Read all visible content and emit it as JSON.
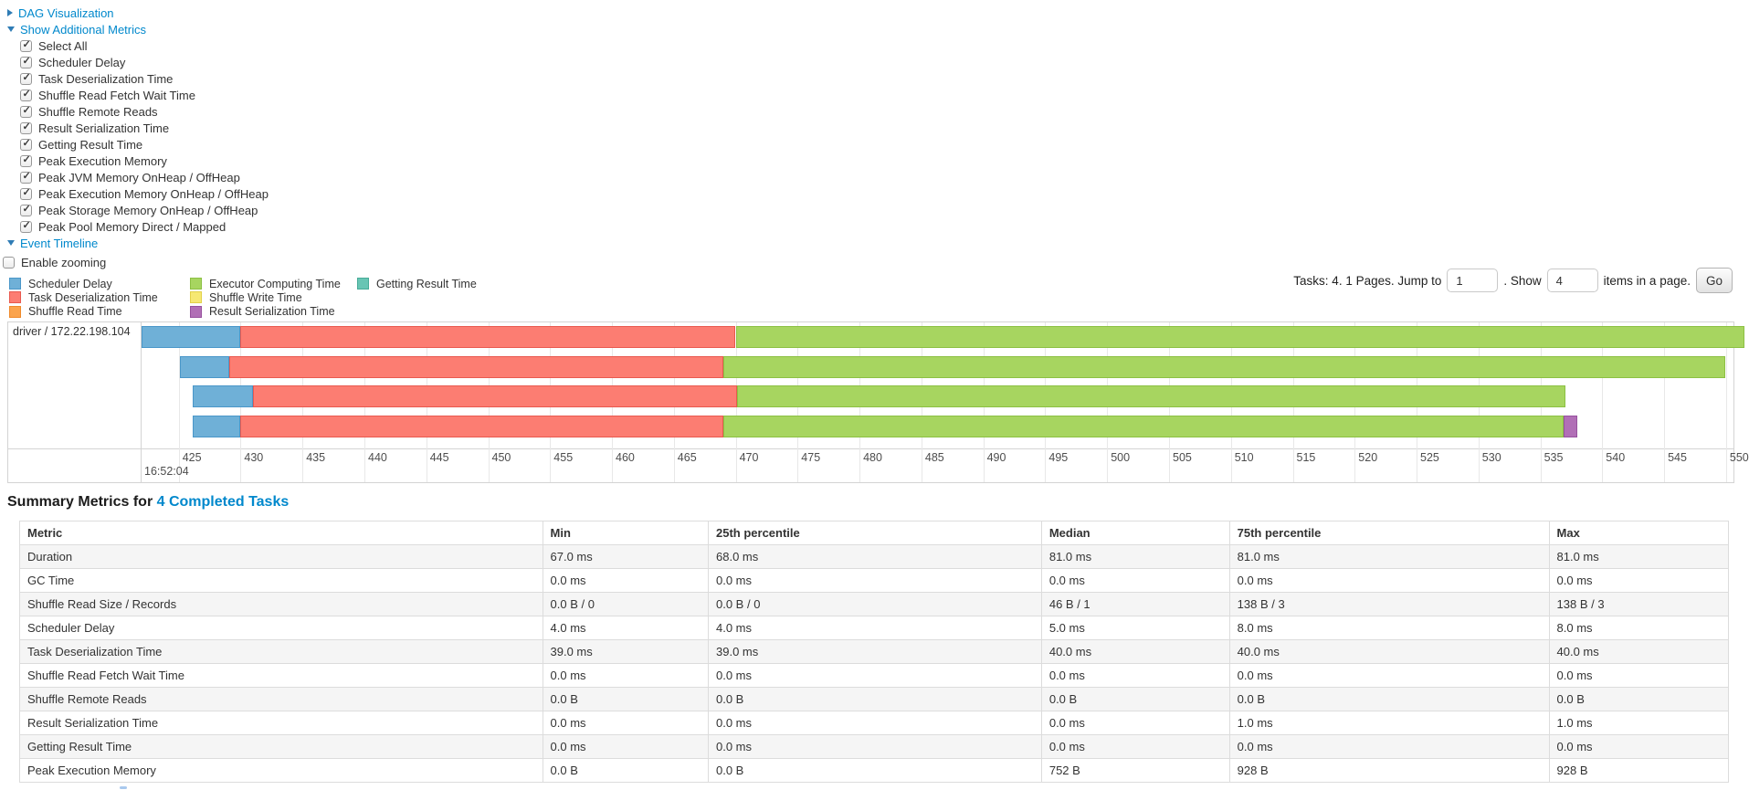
{
  "colors": {
    "link": "#0088cc",
    "arrow": "#2f7cb5",
    "timeline_border": "#d4d4d4",
    "gridline": "#e8e8e8",
    "row_stripe": "#f5f5f5",
    "table_border": "#dcdcdc"
  },
  "controls": {
    "dag_label": "DAG Visualization",
    "metrics_label": "Show Additional Metrics",
    "metrics_items": [
      {
        "label": "Select All",
        "checked": true
      },
      {
        "label": "Scheduler Delay",
        "checked": true
      },
      {
        "label": "Task Deserialization Time",
        "checked": true
      },
      {
        "label": "Shuffle Read Fetch Wait Time",
        "checked": true
      },
      {
        "label": "Shuffle Remote Reads",
        "checked": true
      },
      {
        "label": "Result Serialization Time",
        "checked": true
      },
      {
        "label": "Getting Result Time",
        "checked": true
      },
      {
        "label": "Peak Execution Memory",
        "checked": true
      },
      {
        "label": "Peak JVM Memory OnHeap / OffHeap",
        "checked": true
      },
      {
        "label": "Peak Execution Memory OnHeap / OffHeap",
        "checked": true
      },
      {
        "label": "Peak Storage Memory OnHeap / OffHeap",
        "checked": true
      },
      {
        "label": "Peak Pool Memory Direct / Mapped",
        "checked": true
      }
    ],
    "event_timeline_label": "Event Timeline",
    "enable_zooming": {
      "label": "Enable zooming",
      "checked": false
    }
  },
  "pagination": {
    "summary_text": "Tasks: 4. 1 Pages. Jump to",
    "jump_value": "1",
    "between_text": ". Show",
    "show_value": "4",
    "suffix_text": "items in a page.",
    "go_label": "Go"
  },
  "chart_data": {
    "type": "timeline",
    "group_label": "driver / 172.22.198.104",
    "axis": {
      "min": 422.0,
      "max": 550.6,
      "tick_start": 425,
      "tick_step": 5,
      "tick_end": 550,
      "major_label": "16:52:04",
      "unit": "ms within second 16:52:04"
    },
    "segment_types": {
      "scheduler_delay": {
        "label": "Scheduler Delay",
        "fill": "#6fb0d7",
        "border": "#4a97c9"
      },
      "task_deserialization": {
        "label": "Task Deserialization Time",
        "fill": "#fc7d72",
        "border": "#e9594f"
      },
      "shuffle_read": {
        "label": "Shuffle Read Time",
        "fill": "#fba44d",
        "border": "#ef8a2b"
      },
      "executor_computing": {
        "label": "Executor Computing Time",
        "fill": "#a7d560",
        "border": "#8cc043"
      },
      "shuffle_write": {
        "label": "Shuffle Write Time",
        "fill": "#f6e873",
        "border": "#e2d14a"
      },
      "result_serialization": {
        "label": "Result Serialization Time",
        "fill": "#b16fb6",
        "border": "#97519e"
      },
      "getting_result": {
        "label": "Getting Result Time",
        "fill": "#68c5b4",
        "border": "#47ab98"
      }
    },
    "legend_columns": [
      [
        "scheduler_delay",
        "task_deserialization",
        "shuffle_read"
      ],
      [
        "executor_computing",
        "shuffle_write",
        "result_serialization"
      ],
      [
        "getting_result"
      ]
    ],
    "tasks": [
      {
        "segments": [
          {
            "type": "scheduler_delay",
            "start": 422.0,
            "end": 430.0
          },
          {
            "type": "task_deserialization",
            "start": 430.0,
            "end": 470.0
          },
          {
            "type": "executor_computing",
            "start": 470.0,
            "end": 551.5
          }
        ]
      },
      {
        "segments": [
          {
            "type": "scheduler_delay",
            "start": 425.1,
            "end": 429.1
          },
          {
            "type": "task_deserialization",
            "start": 429.1,
            "end": 469.0
          },
          {
            "type": "executor_computing",
            "start": 469.0,
            "end": 549.9
          }
        ]
      },
      {
        "segments": [
          {
            "type": "scheduler_delay",
            "start": 426.1,
            "end": 431.0
          },
          {
            "type": "task_deserialization",
            "start": 431.0,
            "end": 470.1
          },
          {
            "type": "executor_computing",
            "start": 470.1,
            "end": 537.0
          }
        ]
      },
      {
        "segments": [
          {
            "type": "scheduler_delay",
            "start": 426.1,
            "end": 430.0
          },
          {
            "type": "task_deserialization",
            "start": 430.0,
            "end": 469.0
          },
          {
            "type": "executor_computing",
            "start": 469.0,
            "end": 536.9
          },
          {
            "type": "result_serialization",
            "start": 536.9,
            "end": 538.0
          }
        ]
      }
    ]
  },
  "summary": {
    "title_prefix": "Summary Metrics for",
    "title_link": "4 Completed Tasks",
    "table": {
      "headers": [
        "Metric",
        "Min",
        "25th percentile",
        "Median",
        "75th percentile",
        "Max"
      ],
      "rows": [
        [
          "Duration",
          "67.0 ms",
          "68.0 ms",
          "81.0 ms",
          "81.0 ms",
          "81.0 ms"
        ],
        [
          "GC Time",
          "0.0 ms",
          "0.0 ms",
          "0.0 ms",
          "0.0 ms",
          "0.0 ms"
        ],
        [
          "Shuffle Read Size / Records",
          "0.0 B / 0",
          "0.0 B / 0",
          "46 B / 1",
          "138 B / 3",
          "138 B / 3"
        ],
        [
          "Scheduler Delay",
          "4.0 ms",
          "4.0 ms",
          "5.0 ms",
          "8.0 ms",
          "8.0 ms"
        ],
        [
          "Task Deserialization Time",
          "39.0 ms",
          "39.0 ms",
          "40.0 ms",
          "40.0 ms",
          "40.0 ms"
        ],
        [
          "Shuffle Read Fetch Wait Time",
          "0.0 ms",
          "0.0 ms",
          "0.0 ms",
          "0.0 ms",
          "0.0 ms"
        ],
        [
          "Shuffle Remote Reads",
          "0.0 B",
          "0.0 B",
          "0.0 B",
          "0.0 B",
          "0.0 B"
        ],
        [
          "Result Serialization Time",
          "0.0 ms",
          "0.0 ms",
          "0.0 ms",
          "1.0 ms",
          "1.0 ms"
        ],
        [
          "Getting Result Time",
          "0.0 ms",
          "0.0 ms",
          "0.0 ms",
          "0.0 ms",
          "0.0 ms"
        ],
        [
          "Peak Execution Memory",
          "0.0 B",
          "0.0 B",
          "752 B",
          "928 B",
          "928 B"
        ]
      ]
    }
  }
}
